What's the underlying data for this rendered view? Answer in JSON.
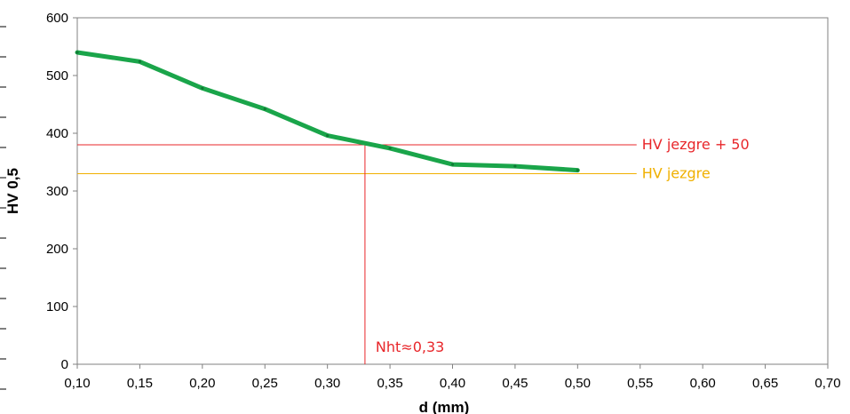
{
  "chart_data": {
    "type": "line",
    "xlabel": "d (mm)",
    "ylabel": "HV 0,5",
    "xlim": [
      0.1,
      0.7
    ],
    "ylim": [
      0,
      600
    ],
    "x_ticks": [
      "0,10",
      "0,15",
      "0,20",
      "0,25",
      "0,30",
      "0,35",
      "0,40",
      "0,45",
      "0,50",
      "0,55",
      "0,60",
      "0,65",
      "0,70"
    ],
    "y_ticks": [
      "0",
      "100",
      "200",
      "300",
      "400",
      "500",
      "600"
    ],
    "grid": false,
    "series": [
      {
        "color": "#1aa54a",
        "x": [
          0.1,
          0.15,
          0.2,
          0.25,
          0.3,
          0.35,
          0.4,
          0.45,
          0.5
        ],
        "y": [
          540,
          524,
          478,
          442,
          396,
          374,
          346,
          343,
          336
        ]
      }
    ],
    "reference_lines": [
      {
        "label": "HV jezgre + 50",
        "y": 380,
        "color": "#e8262a",
        "x_end": 0.55
      },
      {
        "label": "HV jezgre",
        "y": 330,
        "color": "#f0b000",
        "x_end": 0.55
      }
    ],
    "vertical_marker": {
      "label": "Nht≈0,33",
      "x": 0.33,
      "y_top": 380,
      "color": "#e8262a"
    }
  }
}
